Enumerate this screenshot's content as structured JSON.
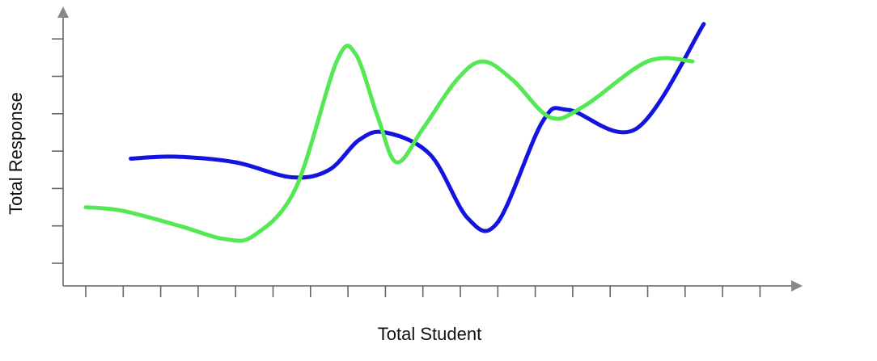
{
  "chart_data": {
    "type": "line",
    "title": "",
    "xlabel": "Total Student",
    "ylabel": "Total Response",
    "x_tick_count": 19,
    "y_tick_count": 7,
    "xlim": [
      0,
      19
    ],
    "ylim": [
      0,
      7
    ],
    "grid": false,
    "legend": "none",
    "series": [
      {
        "color": "#1414e0",
        "x": [
          1.2,
          2.4,
          4.0,
          5.5,
          6.5,
          7.3,
          8.0,
          9.2,
          10.2,
          11.0,
          12.2,
          12.9,
          14.7,
          16.5
        ],
        "y": [
          2.8,
          2.85,
          2.7,
          2.3,
          2.5,
          3.3,
          3.5,
          2.9,
          1.2,
          1.1,
          3.8,
          4.1,
          3.6,
          6.4
        ]
      },
      {
        "color": "#55e855",
        "x": [
          0.0,
          1.0,
          2.5,
          3.7,
          4.5,
          5.6,
          6.7,
          7.2,
          7.8,
          8.3,
          9.0,
          9.9,
          10.6,
          11.4,
          12.4,
          13.3,
          15.0,
          16.2
        ],
        "y": [
          1.5,
          1.4,
          1.0,
          0.65,
          0.75,
          2.0,
          5.4,
          5.6,
          3.9,
          2.7,
          3.6,
          4.9,
          5.4,
          4.9,
          3.9,
          4.2,
          5.4,
          5.4
        ]
      }
    ]
  }
}
